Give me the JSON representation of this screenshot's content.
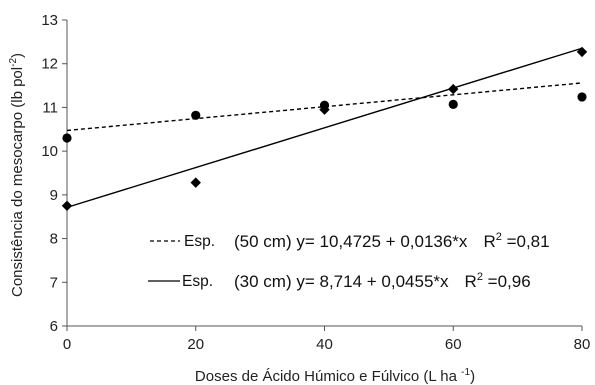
{
  "chart_data": {
    "type": "scatter",
    "xlabel": "Doses de Ácido Húmico e Fúlvico (L ha ",
    "xlabel_sup": "-1",
    "xlabel_close": ")",
    "ylabel": "Consistência do mesocarpo  (lb pol",
    "ylabel_sup": "-2",
    "ylabel_close": ")",
    "xlim": [
      0,
      80
    ],
    "ylim": [
      6,
      13
    ],
    "xticks": [
      0,
      20,
      40,
      60,
      80
    ],
    "yticks": [
      6,
      7,
      8,
      9,
      10,
      11,
      12,
      13
    ],
    "grid": false,
    "legend_position": "bottom-right",
    "series": [
      {
        "marker": "circle",
        "line_style": "dashed",
        "color": "#000000",
        "x": [
          0,
          20,
          40,
          60,
          80
        ],
        "y": [
          10.3,
          10.82,
          11.05,
          11.07,
          11.24
        ],
        "fit": {
          "intercept": 10.4725,
          "slope": 0.0136
        },
        "legend": {
          "prefix": "Esp.",
          "equation": "(50 cm) y= 10,4725 + 0,0136*x",
          "r2_label": "R",
          "r2_sup": "2",
          "r2_value": " =0,81"
        }
      },
      {
        "marker": "diamond",
        "line_style": "solid",
        "color": "#000000",
        "x": [
          0,
          20,
          40,
          60,
          80
        ],
        "y": [
          8.75,
          9.28,
          10.95,
          11.42,
          12.27
        ],
        "fit": {
          "intercept": 8.714,
          "slope": 0.0455
        },
        "legend": {
          "prefix": "Esp.",
          "equation": "(30 cm) y= 8,714 + 0,0455*x",
          "r2_label": "R",
          "r2_sup": "2",
          "r2_value": " =0,96"
        }
      }
    ]
  }
}
